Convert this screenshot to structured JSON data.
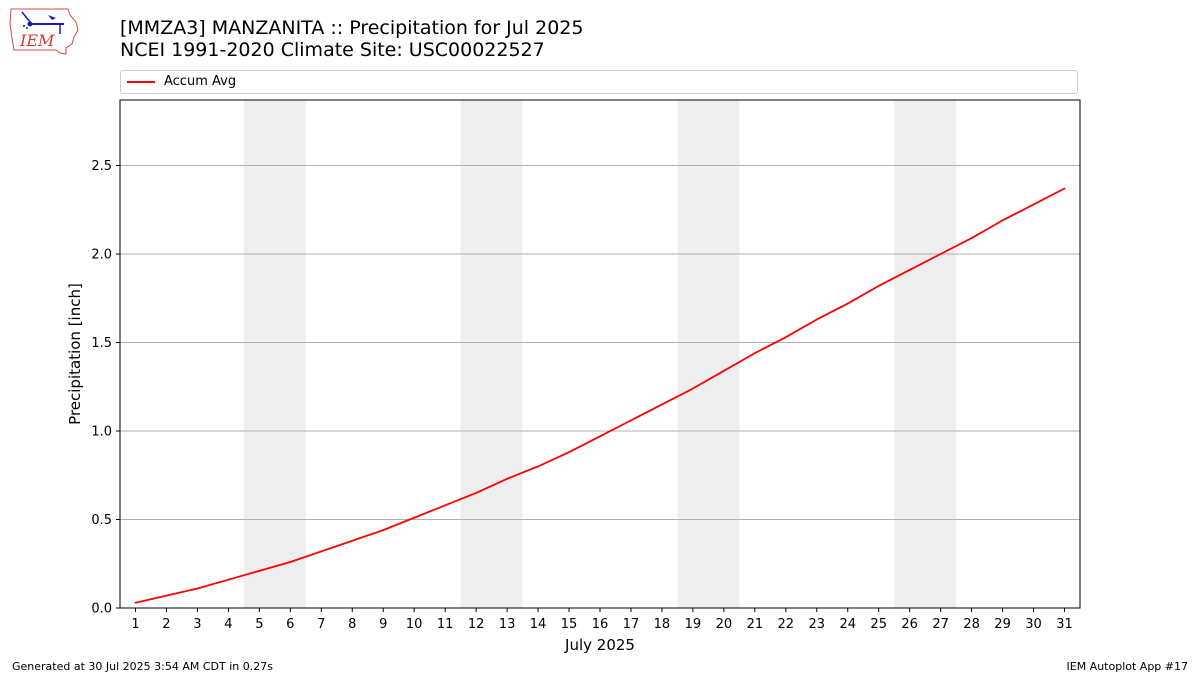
{
  "header": {
    "title_line1": "[MMZA3] MANZANITA :: Precipitation for Jul 2025",
    "title_line2": "NCEI 1991-2020 Climate Site: USC00022527",
    "logo_text": "IEM"
  },
  "legend": {
    "label": "Accum Avg",
    "color": "#ff0000"
  },
  "footer": {
    "left": "Generated at 30 Jul 2025 3:54 AM CDT in 0.27s",
    "right": "IEM Autoplot App #17"
  },
  "chart_data": {
    "type": "line",
    "xlabel": "July 2025",
    "ylabel": "Precipitation [inch]",
    "xlim": [
      0.5,
      31.5
    ],
    "ylim": [
      0,
      2.87
    ],
    "x": [
      1,
      2,
      3,
      4,
      5,
      6,
      7,
      8,
      9,
      10,
      11,
      12,
      13,
      14,
      15,
      16,
      17,
      18,
      19,
      20,
      21,
      22,
      23,
      24,
      25,
      26,
      27,
      28,
      29,
      30,
      31
    ],
    "xtick_labels": [
      "1",
      "2",
      "3",
      "4",
      "5",
      "6",
      "7",
      "8",
      "9",
      "10",
      "11",
      "12",
      "13",
      "14",
      "15",
      "16",
      "17",
      "18",
      "19",
      "20",
      "21",
      "22",
      "23",
      "24",
      "25",
      "26",
      "27",
      "28",
      "29",
      "30",
      "31"
    ],
    "yticks": [
      0.0,
      0.5,
      1.0,
      1.5,
      2.0,
      2.5
    ],
    "ytick_labels": [
      "0.0",
      "0.5",
      "1.0",
      "1.5",
      "2.0",
      "2.5"
    ],
    "grid": "horizontal",
    "legend_position": "top",
    "weekend_shading": [
      [
        4.5,
        6.5
      ],
      [
        11.5,
        13.5
      ],
      [
        18.5,
        20.5
      ],
      [
        25.5,
        27.5
      ]
    ],
    "shade_color": "#eeeeee",
    "series": [
      {
        "name": "Accum Avg",
        "color": "#ff0000",
        "values": [
          0.03,
          0.07,
          0.11,
          0.16,
          0.21,
          0.26,
          0.32,
          0.38,
          0.44,
          0.51,
          0.58,
          0.65,
          0.73,
          0.8,
          0.88,
          0.97,
          1.06,
          1.15,
          1.24,
          1.34,
          1.44,
          1.53,
          1.63,
          1.72,
          1.82,
          1.91,
          2.0,
          2.09,
          2.19,
          2.28,
          2.37
        ]
      }
    ]
  }
}
